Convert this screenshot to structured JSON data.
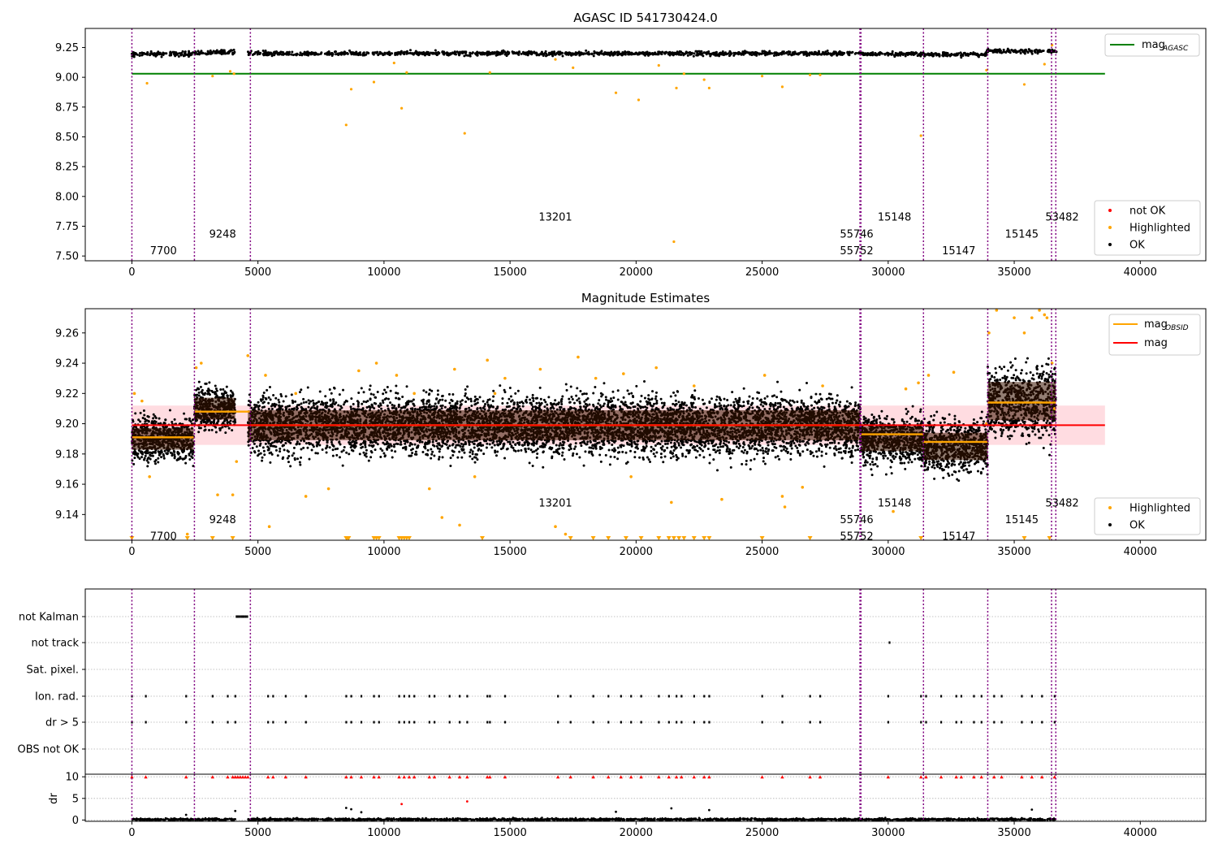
{
  "chart_data": [
    {
      "type": "scatter",
      "title": "AGASC ID 541730424.0",
      "xlim": [
        -1850,
        42600
      ],
      "ylim": [
        7.46,
        9.41
      ],
      "x_ticks": [
        0,
        5000,
        10000,
        15000,
        20000,
        25000,
        30000,
        35000,
        40000
      ],
      "y_ticks": [
        7.5,
        7.75,
        8.0,
        8.25,
        8.5,
        8.75,
        9.0,
        9.25
      ],
      "y_tick_labels": [
        "7.50",
        "7.75",
        "8.00",
        "8.25",
        "8.50",
        "8.75",
        "9.00",
        "9.25"
      ],
      "grid": false,
      "series": [
        {
          "name": "mag",
          "subscript": "AGASC",
          "kind": "hline",
          "y": 9.03,
          "x_range": [
            0,
            38600
          ],
          "color": "#008000"
        },
        {
          "name": "not OK",
          "kind": "points",
          "color": "#ff0000",
          "points": []
        },
        {
          "name": "Highlighted",
          "kind": "points",
          "color": "#ffa500",
          "points": [
            [
              600,
              8.95
            ],
            [
              3200,
              9.01
            ],
            [
              3900,
              9.05
            ],
            [
              4050,
              9.03
            ],
            [
              8500,
              8.6
            ],
            [
              8700,
              8.9
            ],
            [
              9600,
              8.96
            ],
            [
              10400,
              9.12
            ],
            [
              10700,
              8.74
            ],
            [
              10900,
              9.04
            ],
            [
              13200,
              8.53
            ],
            [
              14200,
              9.04
            ],
            [
              16800,
              9.15
            ],
            [
              17500,
              9.08
            ],
            [
              19200,
              8.87
            ],
            [
              20100,
              8.81
            ],
            [
              20900,
              9.1
            ],
            [
              21500,
              7.62
            ],
            [
              21600,
              8.91
            ],
            [
              21900,
              9.03
            ],
            [
              22700,
              8.98
            ],
            [
              22900,
              8.91
            ],
            [
              25000,
              9.01
            ],
            [
              25800,
              8.92
            ],
            [
              26900,
              9.02
            ],
            [
              27300,
              9.02
            ],
            [
              31300,
              8.51
            ],
            [
              33900,
              9.06
            ],
            [
              35400,
              8.94
            ],
            [
              36200,
              9.11
            ],
            [
              36500,
              9.27
            ]
          ]
        },
        {
          "name": "OK",
          "kind": "band",
          "color": "#000000",
          "segments": [
            [
              0,
              2450,
              9.195
            ],
            [
              2450,
              4100,
              9.21
            ],
            [
              4600,
              28900,
              9.2
            ],
            [
              28900,
              31400,
              9.197
            ],
            [
              31400,
              33900,
              9.19
            ],
            [
              33900,
              36700,
              9.22
            ]
          ]
        }
      ],
      "obsid_lines": [
        0,
        2480,
        4700,
        28880,
        28920,
        31400,
        33950,
        36480,
        36650
      ],
      "obsid_labels": [
        {
          "text": "7700",
          "x": 1250,
          "y": 7.55
        },
        {
          "text": "9248",
          "x": 3600,
          "y": 7.69
        },
        {
          "text": "13201",
          "x": 16800,
          "y": 7.83
        },
        {
          "text": "55746",
          "x": 28750,
          "y": 7.69
        },
        {
          "text": "55752",
          "x": 28750,
          "y": 7.55
        },
        {
          "text": "15148",
          "x": 30250,
          "y": 7.83
        },
        {
          "text": "15147",
          "x": 32800,
          "y": 7.55
        },
        {
          "text": "15145",
          "x": 35300,
          "y": 7.69
        },
        {
          "text": "53482",
          "x": 36900,
          "y": 7.83
        }
      ]
    },
    {
      "type": "scatter",
      "title": "Magnitude Estimates",
      "xlim": [
        -1850,
        42600
      ],
      "ylim": [
        9.123,
        9.276
      ],
      "x_ticks": [
        0,
        5000,
        10000,
        15000,
        20000,
        25000,
        30000,
        35000,
        40000
      ],
      "y_ticks": [
        9.14,
        9.16,
        9.18,
        9.2,
        9.22,
        9.24,
        9.26
      ],
      "y_tick_labels": [
        "9.14",
        "9.16",
        "9.18",
        "9.20",
        "9.22",
        "9.24",
        "9.26"
      ],
      "grid": false,
      "mag": 9.199,
      "mag_band": [
        9.186,
        9.212
      ],
      "obsid_mags": [
        {
          "x": [
            0,
            2450
          ],
          "y": 9.191
        },
        {
          "x": [
            2480,
            4700
          ],
          "y": 9.208
        },
        {
          "x": [
            4700,
            28900
          ],
          "y": 9.199
        },
        {
          "x": [
            28920,
            31400
          ],
          "y": 9.193
        },
        {
          "x": [
            31400,
            33950
          ],
          "y": 9.188
        },
        {
          "x": [
            33950,
            36650
          ],
          "y": 9.214
        }
      ],
      "ok_segments": [
        {
          "x": [
            0,
            2450
          ],
          "center": 9.19,
          "spread": 0.016
        },
        {
          "x": [
            2480,
            4100
          ],
          "center": 9.21,
          "spread": 0.016
        },
        {
          "x": [
            4600,
            28900
          ],
          "center": 9.199,
          "spread": 0.022
        },
        {
          "x": [
            28920,
            31400
          ],
          "center": 9.19,
          "spread": 0.018
        },
        {
          "x": [
            31400,
            33950
          ],
          "center": 9.185,
          "spread": 0.02
        },
        {
          "x": [
            33950,
            36650
          ],
          "center": 9.215,
          "spread": 0.028
        }
      ],
      "highlighted_points": [
        [
          100,
          9.22
        ],
        [
          400,
          9.215
        ],
        [
          700,
          9.165
        ],
        [
          2200,
          9.127
        ],
        [
          2550,
          9.237
        ],
        [
          2750,
          9.24
        ],
        [
          3400,
          9.153
        ],
        [
          4000,
          9.153
        ],
        [
          4150,
          9.175
        ],
        [
          4600,
          9.245
        ],
        [
          5300,
          9.232
        ],
        [
          5450,
          9.132
        ],
        [
          6500,
          9.22
        ],
        [
          6900,
          9.152
        ],
        [
          7800,
          9.157
        ],
        [
          9000,
          9.235
        ],
        [
          9700,
          9.24
        ],
        [
          10500,
          9.232
        ],
        [
          11200,
          9.22
        ],
        [
          11800,
          9.157
        ],
        [
          12300,
          9.138
        ],
        [
          12800,
          9.236
        ],
        [
          13000,
          9.133
        ],
        [
          13600,
          9.165
        ],
        [
          14100,
          9.242
        ],
        [
          14400,
          9.22
        ],
        [
          14800,
          9.23
        ],
        [
          16200,
          9.236
        ],
        [
          16800,
          9.132
        ],
        [
          17200,
          9.127
        ],
        [
          17700,
          9.244
        ],
        [
          18400,
          9.23
        ],
        [
          19500,
          9.233
        ],
        [
          19800,
          9.165
        ],
        [
          20800,
          9.237
        ],
        [
          21400,
          9.148
        ],
        [
          22300,
          9.225
        ],
        [
          23400,
          9.15
        ],
        [
          25100,
          9.232
        ],
        [
          25800,
          9.152
        ],
        [
          25900,
          9.145
        ],
        [
          26600,
          9.158
        ],
        [
          27400,
          9.225
        ],
        [
          30200,
          9.142
        ],
        [
          30700,
          9.223
        ],
        [
          31200,
          9.227
        ],
        [
          31600,
          9.232
        ],
        [
          32600,
          9.234
        ],
        [
          33900,
          9.2
        ],
        [
          34000,
          9.26
        ],
        [
          34300,
          9.275
        ],
        [
          35000,
          9.27
        ],
        [
          35400,
          9.26
        ],
        [
          35700,
          9.27
        ],
        [
          36000,
          9.275
        ],
        [
          36200,
          9.272
        ],
        [
          36300,
          9.27
        ],
        [
          36500,
          9.24
        ],
        [
          36600,
          9.21
        ]
      ],
      "clipped_low_points": [
        0,
        2200,
        3200,
        4000,
        8500,
        8550,
        8600,
        9600,
        9700,
        9800,
        10600,
        10700,
        10800,
        10900,
        11000,
        13900,
        17400,
        18300,
        18900,
        19600,
        20200,
        20900,
        21300,
        21500,
        21700,
        21900,
        22300,
        22700,
        22900,
        25000,
        26900,
        31300,
        35400,
        36400
      ],
      "obsid_lines": [
        0,
        2480,
        4700,
        28880,
        28920,
        31400,
        33950,
        36480,
        36650
      ],
      "obsid_labels": [
        {
          "text": "7700",
          "x": 1250,
          "y": 9.126
        },
        {
          "text": "9248",
          "x": 3600,
          "y": 9.137
        },
        {
          "text": "13201",
          "x": 16800,
          "y": 9.148
        },
        {
          "text": "55746",
          "x": 28750,
          "y": 9.137
        },
        {
          "text": "55752",
          "x": 28750,
          "y": 9.126
        },
        {
          "text": "15148",
          "x": 30250,
          "y": 9.148
        },
        {
          "text": "15147",
          "x": 32800,
          "y": 9.126
        },
        {
          "text": "15145",
          "x": 35300,
          "y": 9.137
        },
        {
          "text": "53482",
          "x": 36900,
          "y": 9.148
        }
      ]
    },
    {
      "type": "scatter",
      "title": "",
      "xlim": [
        -1850,
        42600
      ],
      "x_ticks": [
        0,
        5000,
        10000,
        15000,
        20000,
        25000,
        30000,
        35000,
        40000
      ],
      "flag_categories": [
        "not Kalman",
        "not track",
        "Sat. pixel.",
        "Ion. rad.",
        "dr > 5",
        "OBS not OK"
      ],
      "flag_events": {
        "not Kalman": [
          4150,
          4220,
          4290,
          4360,
          4430,
          4500,
          4570
        ],
        "not track": [
          30050
        ],
        "Sat. pixel.": [],
        "Ion. rad.": [
          0,
          550,
          2150,
          3200,
          3800,
          4100,
          5400,
          5600,
          6100,
          6900,
          8500,
          8700,
          9100,
          9600,
          9800,
          10600,
          10800,
          11000,
          11200,
          11800,
          12000,
          12600,
          13000,
          13300,
          14100,
          14200,
          14800,
          16900,
          17400,
          18300,
          18900,
          19400,
          19800,
          20200,
          20900,
          21300,
          21600,
          21800,
          22300,
          22700,
          22900,
          25000,
          25800,
          26900,
          27300,
          30000,
          31300,
          31500,
          32100,
          32700,
          32900,
          33400,
          33700,
          34200,
          34500,
          35300,
          35700,
          36100,
          36600
        ],
        "dr > 5": [
          0,
          550,
          2150,
          3200,
          3800,
          4100,
          5400,
          5600,
          6100,
          6900,
          8500,
          8700,
          9100,
          9600,
          9800,
          10600,
          10800,
          11000,
          11200,
          11800,
          12000,
          12600,
          13000,
          13300,
          14100,
          14200,
          14800,
          16900,
          17400,
          18300,
          18900,
          19400,
          19800,
          20200,
          20900,
          21300,
          21600,
          21800,
          22300,
          22700,
          22900,
          25000,
          25800,
          26900,
          27300,
          30000,
          31300,
          31500,
          32100,
          32700,
          32900,
          33400,
          33700,
          34200,
          34500,
          35300,
          35700,
          36100,
          36600
        ],
        "OBS not OK": []
      },
      "dr_ylim": [
        -0.3,
        10.6
      ],
      "dr_yticks": [
        0,
        5,
        10
      ],
      "dr_ylabel": "dr",
      "dr_clipped_x": [
        0,
        550,
        2150,
        3200,
        3800,
        4000,
        4100,
        4200,
        4300,
        4400,
        4500,
        4600,
        5400,
        5600,
        6100,
        6900,
        8500,
        8700,
        9100,
        9600,
        9800,
        10600,
        10800,
        11000,
        11200,
        11800,
        12000,
        12600,
        13000,
        13300,
        14100,
        14200,
        14800,
        16900,
        17400,
        18300,
        18900,
        19400,
        19800,
        20200,
        20900,
        21300,
        21600,
        21800,
        22300,
        22700,
        22900,
        25000,
        25800,
        26900,
        27300,
        30000,
        31300,
        31500,
        32100,
        32700,
        32900,
        33400,
        33700,
        34200,
        34500,
        35300,
        35700,
        36100,
        36600
      ],
      "dr_points": [
        [
          8500,
          2.8
        ],
        [
          8700,
          2.5
        ],
        [
          9100,
          1.8
        ],
        [
          10700,
          3.7
        ],
        [
          13300,
          4.3
        ],
        [
          19200,
          1.9
        ],
        [
          21400,
          2.7
        ],
        [
          22900,
          2.3
        ],
        [
          35700,
          2.4
        ],
        [
          2150,
          1.2
        ],
        [
          4100,
          2.1
        ]
      ],
      "obsid_lines": [
        0,
        2480,
        4700,
        28880,
        28920,
        31400,
        33950,
        36480,
        36650
      ]
    }
  ],
  "legends": {
    "top": [
      {
        "label": "mag",
        "sub": "AGASC",
        "color": "#008000"
      }
    ],
    "top_points": [
      {
        "label": "not OK",
        "color": "#ff0000"
      },
      {
        "label": "Highlighted",
        "color": "#ffa500"
      },
      {
        "label": "OK",
        "color": "#000000"
      }
    ],
    "mid": [
      {
        "label": "mag",
        "sub": "OBSID",
        "color": "#ffa500"
      },
      {
        "label": "mag",
        "sub": "",
        "color": "#ff0000"
      }
    ],
    "mid_points": [
      {
        "label": "Highlighted",
        "color": "#ffa500"
      },
      {
        "label": "OK",
        "color": "#000000"
      }
    ]
  },
  "colors": {
    "obsid_line": "#800080",
    "ok": "#000000",
    "highlighted": "#ffa500",
    "not_ok": "#ff0000",
    "agasc": "#008000",
    "mag": "#ff0000",
    "mag_band": "#ffc0c8",
    "obsid_mag": "#ffa500",
    "grid": "#b0b0b0"
  }
}
